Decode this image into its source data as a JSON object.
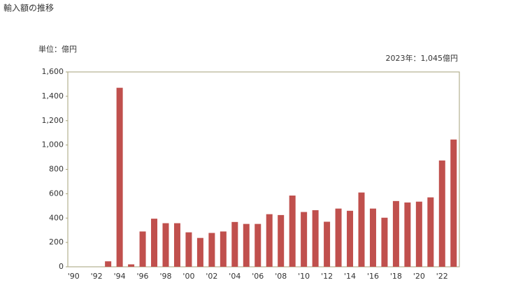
{
  "chart_data": {
    "type": "bar",
    "title": "輸入額の推移",
    "unit_label": "単位：億円",
    "annotation": "2023年：1,045億円",
    "categories": [
      "'90",
      null,
      "'92",
      null,
      "'94",
      null,
      "'96",
      null,
      "'98",
      null,
      "'00",
      null,
      "'02",
      null,
      "'04",
      null,
      "'06",
      null,
      "'08",
      null,
      "'10",
      null,
      "'12",
      null,
      "'14",
      null,
      "'16",
      null,
      "'18",
      null,
      "'20",
      null,
      "'22",
      null
    ],
    "values": [
      0,
      0,
      0,
      45,
      1470,
      20,
      290,
      395,
      358,
      358,
      283,
      237,
      278,
      290,
      368,
      352,
      352,
      432,
      425,
      585,
      450,
      465,
      370,
      478,
      460,
      610,
      478,
      403,
      540,
      528,
      535,
      570,
      873,
      1045
    ],
    "color": "#c0504d",
    "ylim": [
      0,
      1600
    ],
    "yticks": [
      0,
      200,
      400,
      600,
      800,
      {
        "value": 1000,
        "label": "1,000"
      },
      {
        "value": 1200,
        "label": "1,200"
      },
      {
        "value": 1400,
        "label": "1,400"
      },
      {
        "value": 1600,
        "label": "1,600"
      }
    ],
    "grid": false
  }
}
